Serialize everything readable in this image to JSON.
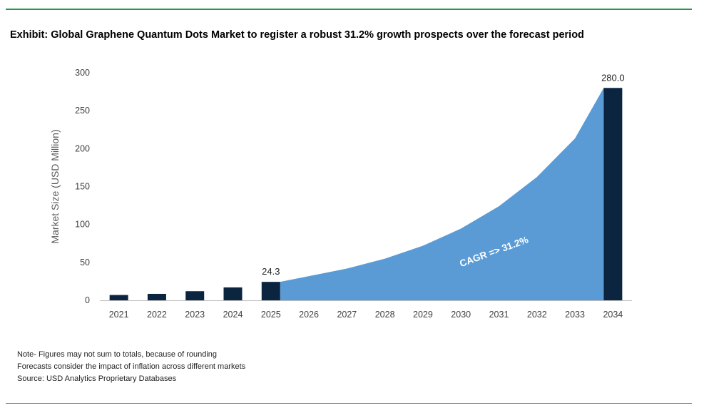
{
  "title": "Exhibit: Global Graphene Quantum Dots Market to register a robust 31.2% growth prospects over the forecast period",
  "notes": [
    "Note- Figures may not sum to totals, because of rounding",
    "Forecasts consider the impact of inflation across different markets",
    "Source: USD Analytics Proprietary Databases"
  ],
  "colors": {
    "accent_rule": "#1f9a4a",
    "bar": "#0b2540",
    "area": "#5b9bd5"
  },
  "chart_data": {
    "type": "bar",
    "title": "Exhibit: Global Graphene Quantum Dots Market to register a robust 31.2% growth prospects over the forecast period",
    "xlabel": "",
    "ylabel": "Market Size (USD Million)",
    "ylim": [
      0,
      300
    ],
    "yticks": [
      0,
      50,
      100,
      150,
      200,
      250,
      300
    ],
    "categories": [
      "2021",
      "2022",
      "2023",
      "2024",
      "2025",
      "2026",
      "2027",
      "2028",
      "2029",
      "2030",
      "2031",
      "2032",
      "2033",
      "2034"
    ],
    "bars": [
      {
        "x": "2021",
        "value": 7.0
      },
      {
        "x": "2022",
        "value": 8.5
      },
      {
        "x": "2023",
        "value": 12.0
      },
      {
        "x": "2024",
        "value": 17.0
      },
      {
        "x": "2025",
        "value": 24.3
      },
      {
        "x": "2034",
        "value": 280.0
      }
    ],
    "area": {
      "x": [
        "2025",
        "2026",
        "2027",
        "2028",
        "2029",
        "2030",
        "2031",
        "2032",
        "2033",
        "2034"
      ],
      "values": [
        24.3,
        31.9,
        41.8,
        54.9,
        72.0,
        94.5,
        124.0,
        162.6,
        213.4,
        280.0
      ]
    },
    "data_labels": [
      {
        "x": "2025",
        "text": "24.3"
      },
      {
        "x": "2034",
        "text": "280.0"
      }
    ],
    "annotation": "CAGR => 31.2%",
    "grid": false,
    "legend": "none"
  }
}
